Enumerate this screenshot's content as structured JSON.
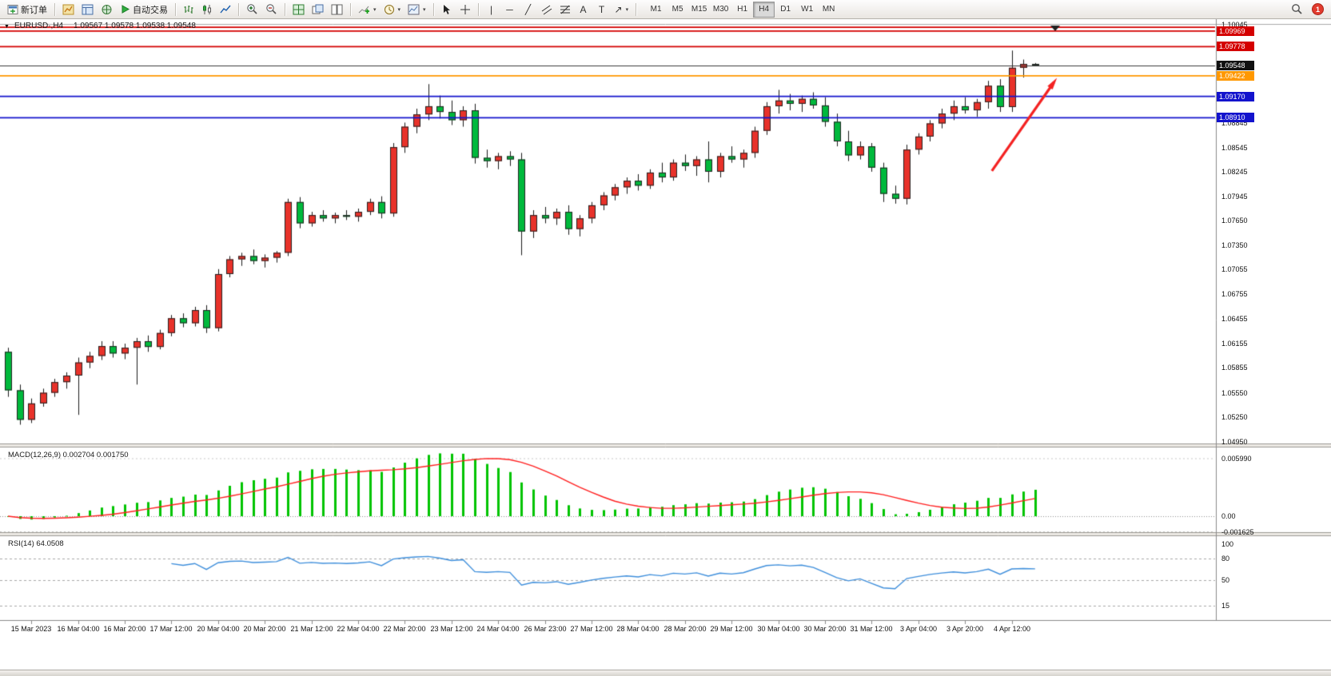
{
  "toolbar": {
    "new_order_label": "新订单",
    "autotrading_label": "自动交易",
    "timeframes": [
      "M1",
      "M5",
      "M15",
      "M30",
      "H1",
      "H4",
      "D1",
      "W1",
      "MN"
    ],
    "active_timeframe": "H4",
    "notification_count": "1"
  },
  "chart": {
    "title": "EURUSD·,H4",
    "ohlc": "1.09567 1.09578 1.09538 1.09548",
    "price_axis_ticks": [
      "1.10045",
      "1.08845",
      "1.08545",
      "1.08245",
      "1.07945",
      "1.07650",
      "1.07350",
      "1.07055",
      "1.06755",
      "1.06455",
      "1.06155",
      "1.05855",
      "1.05550",
      "1.05250",
      "1.04950"
    ]
  },
  "macd": {
    "label": "MACD(12,26,9) 0.002704 0.001750",
    "ticks": [
      {
        "label": "0.005990",
        "value": 0.00599
      },
      {
        "label": "0.00",
        "value": 0
      },
      {
        "label": "-0.001625",
        "value": -0.001625
      }
    ]
  },
  "rsi": {
    "label": "RSI(14) 64.0508",
    "ticks": [
      {
        "label": "100",
        "value": 100
      },
      {
        "label": "80",
        "value": 80
      },
      {
        "label": "50",
        "value": 50
      },
      {
        "label": "15",
        "value": 15
      }
    ],
    "levels": [
      80,
      50,
      15
    ]
  },
  "chart_data": {
    "type": "candlestick",
    "symbol": "EURUSD",
    "timeframe": "H4",
    "ylim": [
      1.0495,
      1.10045
    ],
    "colors": {
      "bull": "#e8322a",
      "bear": "#00b93c",
      "wick": "#1a1a1a",
      "macd_hist": "#00c400",
      "macd_signal": "#ff2020",
      "rsi_line": "#3f8fdc"
    },
    "candles": [
      [
        1.0605,
        1.061,
        1.055,
        1.0558
      ],
      [
        1.0558,
        1.0565,
        1.0516,
        1.0522
      ],
      [
        1.0522,
        1.0548,
        1.0518,
        1.0542
      ],
      [
        1.0542,
        1.056,
        1.0538,
        1.0555
      ],
      [
        1.0555,
        1.0572,
        1.055,
        1.0568
      ],
      [
        1.0568,
        1.058,
        1.056,
        1.0576
      ],
      [
        1.0576,
        1.0598,
        1.0528,
        1.0592
      ],
      [
        1.0592,
        1.0605,
        1.0585,
        1.06
      ],
      [
        1.06,
        1.0618,
        1.0595,
        1.0612
      ],
      [
        1.0612,
        1.0618,
        1.0598,
        1.0603
      ],
      [
        1.0603,
        1.0615,
        1.0596,
        1.061
      ],
      [
        1.061,
        1.0622,
        1.0565,
        1.0618
      ],
      [
        1.0618,
        1.0625,
        1.0605,
        1.0611
      ],
      [
        1.0611,
        1.0632,
        1.0608,
        1.0628
      ],
      [
        1.0628,
        1.065,
        1.0624,
        1.0646
      ],
      [
        1.0646,
        1.0652,
        1.0635,
        1.064
      ],
      [
        1.064,
        1.066,
        1.0636,
        1.0656
      ],
      [
        1.0656,
        1.0662,
        1.0628,
        1.0634
      ],
      [
        1.0634,
        1.0706,
        1.063,
        1.07
      ],
      [
        1.07,
        1.0722,
        1.0696,
        1.0718
      ],
      [
        1.0718,
        1.0726,
        1.071,
        1.0722
      ],
      [
        1.0722,
        1.073,
        1.0712,
        1.0716
      ],
      [
        1.0716,
        1.0724,
        1.0708,
        1.072
      ],
      [
        1.072,
        1.0728,
        1.0714,
        1.0726
      ],
      [
        1.0726,
        1.0792,
        1.0722,
        1.0788
      ],
      [
        1.0788,
        1.0794,
        1.0756,
        1.0762
      ],
      [
        1.0762,
        1.0776,
        1.0758,
        1.0772
      ],
      [
        1.0772,
        1.0778,
        1.0764,
        1.0768
      ],
      [
        1.0768,
        1.0775,
        1.0762,
        1.0772
      ],
      [
        1.0772,
        1.0778,
        1.0766,
        1.077
      ],
      [
        1.077,
        1.078,
        1.0764,
        1.0776
      ],
      [
        1.0776,
        1.0792,
        1.0772,
        1.0788
      ],
      [
        1.0788,
        1.0795,
        1.0768,
        1.0774
      ],
      [
        1.0774,
        1.086,
        1.077,
        1.0855
      ],
      [
        1.0855,
        1.0885,
        1.0848,
        1.088
      ],
      [
        1.088,
        1.0902,
        1.0872,
        1.0895
      ],
      [
        1.0895,
        1.0932,
        1.0888,
        1.0905
      ],
      [
        1.0905,
        1.0918,
        1.089,
        1.0898
      ],
      [
        1.0898,
        1.0912,
        1.0882,
        1.0888
      ],
      [
        1.0888,
        1.0905,
        1.088,
        1.09
      ],
      [
        1.09,
        1.0908,
        1.0835,
        1.0842
      ],
      [
        1.0842,
        1.0852,
        1.083,
        1.0838
      ],
      [
        1.0838,
        1.0848,
        1.0828,
        1.0844
      ],
      [
        1.0844,
        1.085,
        1.0832,
        1.084
      ],
      [
        1.084,
        1.0848,
        1.0723,
        1.0752
      ],
      [
        1.0752,
        1.0778,
        1.0744,
        1.0772
      ],
      [
        1.0772,
        1.0782,
        1.0762,
        1.0768
      ],
      [
        1.0768,
        1.078,
        1.076,
        1.0776
      ],
      [
        1.0776,
        1.0784,
        1.0748,
        1.0755
      ],
      [
        1.0755,
        1.0772,
        1.0746,
        1.0768
      ],
      [
        1.0768,
        1.0788,
        1.0762,
        1.0784
      ],
      [
        1.0784,
        1.08,
        1.0778,
        1.0796
      ],
      [
        1.0796,
        1.081,
        1.079,
        1.0806
      ],
      [
        1.0806,
        1.0818,
        1.0798,
        1.0814
      ],
      [
        1.0814,
        1.0822,
        1.0802,
        1.0808
      ],
      [
        1.0808,
        1.0828,
        1.0804,
        1.0824
      ],
      [
        1.0824,
        1.0836,
        1.0812,
        1.0818
      ],
      [
        1.0818,
        1.084,
        1.0814,
        1.0836
      ],
      [
        1.0836,
        1.0846,
        1.0826,
        1.0832
      ],
      [
        1.0832,
        1.0844,
        1.082,
        1.084
      ],
      [
        1.084,
        1.0862,
        1.0812,
        1.0825
      ],
      [
        1.0825,
        1.0848,
        1.0818,
        1.0844
      ],
      [
        1.0844,
        1.0856,
        1.0836,
        1.084
      ],
      [
        1.084,
        1.0852,
        1.083,
        1.0848
      ],
      [
        1.0848,
        1.088,
        1.0842,
        1.0875
      ],
      [
        1.0875,
        1.091,
        1.087,
        1.0905
      ],
      [
        1.0905,
        1.0925,
        1.0896,
        1.0912
      ],
      [
        1.0912,
        1.092,
        1.09,
        1.0908
      ],
      [
        1.0908,
        1.0918,
        1.0898,
        1.0914
      ],
      [
        1.0914,
        1.0922,
        1.0902,
        1.0906
      ],
      [
        1.0906,
        1.0916,
        1.088,
        1.0886
      ],
      [
        1.0886,
        1.0896,
        1.0856,
        1.0862
      ],
      [
        1.0862,
        1.0875,
        1.0838,
        1.0845
      ],
      [
        1.0845,
        1.0862,
        1.084,
        1.0856
      ],
      [
        1.0856,
        1.086,
        1.0825,
        1.083
      ],
      [
        1.083,
        1.0836,
        1.0788,
        1.0798
      ],
      [
        1.0798,
        1.0808,
        1.0786,
        1.0792
      ],
      [
        1.0792,
        1.0858,
        1.0785,
        1.0852
      ],
      [
        1.0852,
        1.0872,
        1.0846,
        1.0868
      ],
      [
        1.0868,
        1.0888,
        1.0862,
        1.0884
      ],
      [
        1.0884,
        1.0902,
        1.0878,
        1.0896
      ],
      [
        1.0896,
        1.0912,
        1.0888,
        1.0905
      ],
      [
        1.0905,
        1.0916,
        1.0896,
        1.09
      ],
      [
        1.09,
        1.0914,
        1.0892,
        1.091
      ],
      [
        1.091,
        1.0936,
        1.0902,
        1.093
      ],
      [
        1.093,
        1.0938,
        1.0898,
        1.0904
      ],
      [
        1.0904,
        1.0973,
        1.0898,
        1.0952
      ],
      [
        1.0952,
        1.0962,
        1.094,
        1.09567
      ],
      [
        1.09567,
        1.09578,
        1.09538,
        1.09548
      ]
    ],
    "label_start_index": 2,
    "label_step": 4,
    "time_labels": [
      "15 Mar 2023",
      "16 Mar 04:00",
      "16 Mar 20:00",
      "17 Mar 12:00",
      "20 Mar 04:00",
      "20 Mar 20:00",
      "21 Mar 12:00",
      "22 Mar 04:00",
      "22 Mar 20:00",
      "23 Mar 12:00",
      "24 Mar 04:00",
      "26 Mar 23:00",
      "27 Mar 12:00",
      "28 Mar 04:00",
      "28 Mar 20:00",
      "29 Mar 12:00",
      "30 Mar 04:00",
      "30 Mar 20:00",
      "31 Mar 12:00",
      "3 Apr 04:00",
      "3 Apr 20:00",
      "4 Apr 12:00"
    ],
    "levels": [
      {
        "price": 1.10015,
        "label": null,
        "color": "#d40000"
      },
      {
        "price": 1.09969,
        "label": "1.09969",
        "color": "#d40000"
      },
      {
        "price": 1.09778,
        "label": "1.09778",
        "color": "#d40000"
      },
      {
        "price": 1.09422,
        "label": "1.09422",
        "color": "#ff9800"
      },
      {
        "price": 1.0917,
        "label": "1.09170",
        "color": "#1313cd"
      },
      {
        "price": 1.0891,
        "label": "1.08910",
        "color": "#1313cd"
      }
    ],
    "current_price": {
      "price": 1.09548,
      "label": "1.09548",
      "color": "#111111"
    },
    "annotation_arrow": {
      "from_bar": 84.3,
      "from_price": 1.0826,
      "to_bar": 89.6,
      "to_price": 1.0934,
      "color": "#f42222"
    },
    "indicators": [
      {
        "name": "MACD",
        "params": [
          12,
          26,
          9
        ],
        "current_values": [
          0.002704,
          0.00175
        ]
      },
      {
        "name": "RSI",
        "params": [
          14
        ],
        "current_value": 64.0508
      }
    ]
  }
}
